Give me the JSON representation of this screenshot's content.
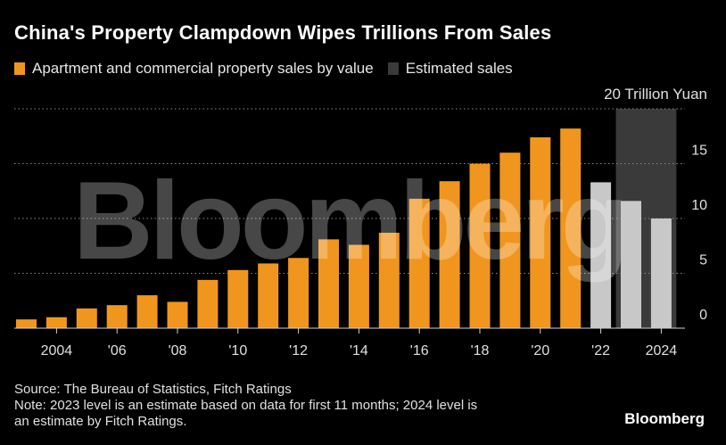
{
  "title": "China's Property Clampdown Wipes Trillions From Sales",
  "legend": [
    {
      "label": "Apartment and commercial property sales by value",
      "color": "#f0961e"
    },
    {
      "label": "Estimated sales",
      "color": "#3a3a3a"
    }
  ],
  "watermark_text": "Bloomberg",
  "footer": {
    "source": "Source: The Bureau of Statistics, Fitch Ratings",
    "note_line1": "Note: 2023 level is an estimate based on data for first 11 months; 2024 level is",
    "note_line2": "an estimate by Fitch Ratings."
  },
  "brand": "Bloomberg",
  "chart_data": {
    "type": "bar",
    "title": "China's Property Clampdown Wipes Trillions From Sales",
    "unit_label": "20 Trillion Yuan",
    "ylim": [
      0,
      20
    ],
    "yticks": [
      0,
      5,
      10,
      15
    ],
    "grid": true,
    "legend_position": "top-left",
    "x_tick_labels": [
      "2004",
      "'06",
      "'08",
      "'10",
      "'12",
      "'14",
      "'16",
      "'18",
      "'20",
      "'22",
      "2024"
    ],
    "x_tick_years": [
      2004,
      2006,
      2008,
      2010,
      2012,
      2014,
      2016,
      2018,
      2020,
      2022,
      2024
    ],
    "estimated_period": [
      2023,
      2024
    ],
    "series": [
      {
        "name": "Apartment and commercial property sales by value",
        "color": "#f0961e",
        "years": [
          2003,
          2004,
          2005,
          2006,
          2007,
          2008,
          2009,
          2010,
          2011,
          2012,
          2013,
          2014,
          2015,
          2016,
          2017,
          2018,
          2019,
          2020,
          2021
        ],
        "values": [
          0.8,
          1.0,
          1.8,
          2.1,
          3.0,
          2.4,
          4.4,
          5.3,
          5.9,
          6.4,
          8.1,
          7.6,
          8.7,
          11.8,
          13.4,
          15.0,
          16.0,
          17.4,
          18.2
        ]
      },
      {
        "name": "Estimated sales",
        "color": "#c8c8c8",
        "years": [
          2022,
          2023,
          2024
        ],
        "values": [
          13.3,
          11.6,
          10.0
        ]
      }
    ]
  }
}
